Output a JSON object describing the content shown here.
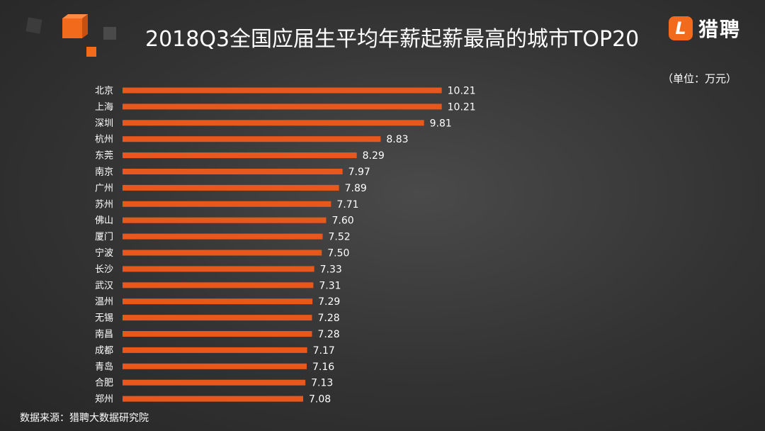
{
  "header": {
    "title": "2018Q3全国应届生平均年薪起薪最高的城市TOP20",
    "unit": "（单位：万元）",
    "logo_mark": "L",
    "logo_text": "猎聘"
  },
  "footer": {
    "source": "数据来源：猎聘大数据研究院"
  },
  "colors": {
    "bar": "#e8581c",
    "text": "#ffffff",
    "background": "#333333",
    "accent": "#f26a1b"
  },
  "chart_data": {
    "type": "bar",
    "orientation": "horizontal",
    "title": "2018Q3全国应届生平均年薪起薪最高的城市TOP20",
    "unit": "（单位：万元）",
    "categories": [
      "北京",
      "上海",
      "深圳",
      "杭州",
      "东莞",
      "南京",
      "广州",
      "苏州",
      "佛山",
      "厦门",
      "宁波",
      "长沙",
      "武汉",
      "温州",
      "无锡",
      "南昌",
      "成都",
      "青岛",
      "合肥",
      "郑州"
    ],
    "values": [
      10.21,
      10.21,
      9.81,
      8.83,
      8.29,
      7.97,
      7.89,
      7.71,
      7.6,
      7.52,
      7.5,
      7.33,
      7.31,
      7.29,
      7.28,
      7.28,
      7.17,
      7.16,
      7.13,
      7.08
    ],
    "value_labels": [
      "10.21",
      "10.21",
      "9.81",
      "8.83",
      "8.29",
      "7.97",
      "7.89",
      "7.71",
      "7.60",
      "7.52",
      "7.50",
      "7.33",
      "7.31",
      "7.29",
      "7.28",
      "7.28",
      "7.17",
      "7.16",
      "7.13",
      "7.08"
    ],
    "grid": false,
    "legend": "none",
    "axis_visible": false
  }
}
